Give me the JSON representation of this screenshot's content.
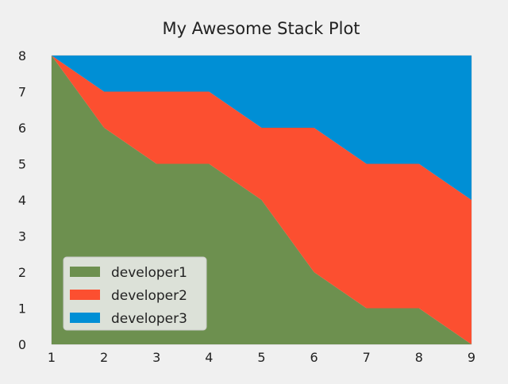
{
  "chart_data": {
    "type": "area",
    "stacked": true,
    "title": "My Awesome Stack Plot",
    "xlabel": "",
    "ylabel": "",
    "x": [
      1,
      2,
      3,
      4,
      5,
      6,
      7,
      8,
      9
    ],
    "xlim": [
      1,
      9
    ],
    "ylim": [
      0,
      8
    ],
    "xticks": [
      "1",
      "2",
      "3",
      "4",
      "5",
      "6",
      "7",
      "8",
      "9"
    ],
    "yticks": [
      "0",
      "1",
      "2",
      "3",
      "4",
      "5",
      "6",
      "7",
      "8"
    ],
    "grid": true,
    "legend_position": "lower-left",
    "series": [
      {
        "name": "developer1",
        "color": "#6d904f",
        "values": [
          8,
          6,
          5,
          5,
          4,
          2,
          1,
          1,
          0
        ]
      },
      {
        "name": "developer2",
        "color": "#fc4f30",
        "values": [
          0,
          1,
          2,
          2,
          2,
          4,
          4,
          4,
          4
        ]
      },
      {
        "name": "developer3",
        "color": "#008fd5",
        "values": [
          0,
          1,
          1,
          1,
          2,
          2,
          3,
          3,
          4
        ]
      }
    ],
    "grid_color": "#cbcbcb",
    "background": "#f0f0f0"
  }
}
